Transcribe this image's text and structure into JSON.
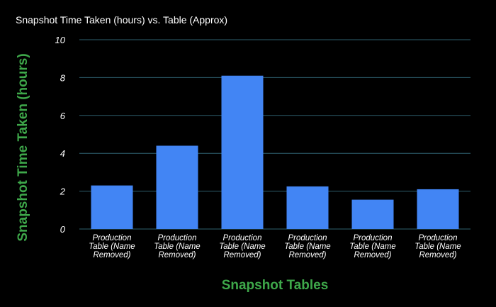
{
  "colors": {
    "background": "#000000",
    "gridline": "#2e5f6e",
    "bar": "#4285f4",
    "axis_label": "#3ea84a",
    "text": "#ffffff"
  },
  "chart_data": {
    "type": "bar",
    "title": "Snapshot Time Taken (hours) vs. Table (Approx)",
    "xlabel": "Snapshot Tables",
    "ylabel": "Snapshot Time Taken (hours)",
    "categories": [
      [
        "Production",
        "Table (Name",
        "Removed)"
      ],
      [
        "Production",
        "Table (Name",
        "Removed)"
      ],
      [
        "Production",
        "Table (Name",
        "Removed)"
      ],
      [
        "Production",
        "Table (Name",
        "Removed)"
      ],
      [
        "Production",
        "Table (Name",
        "Removed)"
      ],
      [
        "Production",
        "Table (Name",
        "Removed)"
      ]
    ],
    "values": [
      2.3,
      4.4,
      8.1,
      2.25,
      1.55,
      2.1
    ],
    "ylim": [
      0,
      10
    ],
    "yticks": [
      "0",
      "2",
      "4",
      "6",
      "8",
      "10"
    ],
    "grid": true,
    "legend": "none"
  }
}
